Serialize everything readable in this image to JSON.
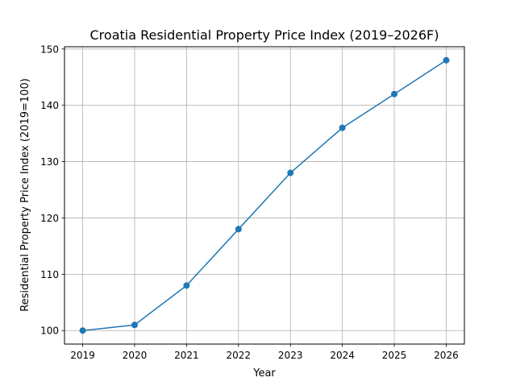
{
  "chart_data": {
    "type": "line",
    "title": "Croatia Residential Property Price Index (2019–2026F)",
    "xlabel": "Year",
    "ylabel": "Residential Property Price Index (2019=100)",
    "x": [
      2019,
      2020,
      2021,
      2022,
      2023,
      2024,
      2025,
      2026
    ],
    "series": [
      {
        "values": [
          100,
          101,
          108,
          118,
          128,
          136,
          142,
          148
        ],
        "color": "#1f77b4",
        "marker": "circle"
      }
    ],
    "xticks": [
      "2019",
      "2020",
      "2021",
      "2022",
      "2023",
      "2024",
      "2025",
      "2026"
    ],
    "yticks": [
      "100",
      "110",
      "120",
      "130",
      "140",
      "150"
    ],
    "xlim": [
      2018.65,
      2026.35
    ],
    "ylim": [
      97.6,
      150.4
    ],
    "grid": true
  }
}
